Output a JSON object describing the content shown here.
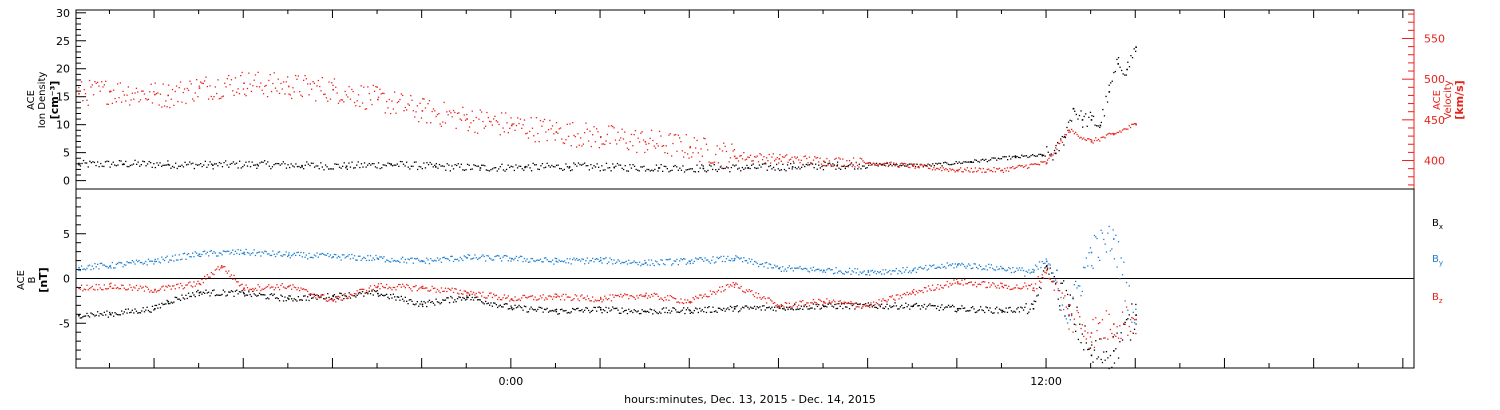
{
  "chart_data": [
    {
      "type": "scatter",
      "panel": "ion-density-velocity",
      "xlabel": "hours:minutes, Dec. 13, 2015 - Dec. 14, 2015",
      "x_unit": "hours from 2015-12-13 00:00",
      "x_range": [
        -9.75,
        20.25
      ],
      "x_ticks": [
        {
          "x": 0,
          "label": "0:00"
        },
        {
          "x": 12,
          "label": "12:00"
        }
      ],
      "left_axis": {
        "label_line1": "ACE",
        "label_line2": "Ion Density",
        "label_units": "[cm⁻³]",
        "range": [
          -1.5,
          30.5
        ],
        "ticks": [
          {
            "v": 0,
            "label": "0"
          },
          {
            "v": 5,
            "label": "5"
          },
          {
            "v": 10,
            "label": "10"
          },
          {
            "v": 15,
            "label": "15"
          },
          {
            "v": 20,
            "label": "20"
          },
          {
            "v": 25,
            "label": "25"
          },
          {
            "v": 30,
            "label": "30"
          }
        ]
      },
      "right_axis": {
        "label_line1": "ACE",
        "label_line2": "Velocity",
        "label_units": "[km/s]",
        "range": [
          365,
          585
        ],
        "ticks": [
          {
            "v": 400,
            "label": "400"
          },
          {
            "v": 450,
            "label": "450"
          },
          {
            "v": 500,
            "label": "500"
          },
          {
            "v": 550,
            "label": "550"
          }
        ]
      },
      "series": [
        {
          "axis": "left",
          "color": "#000000",
          "x": [
            -9.7,
            -8.7,
            -7.7,
            -6.7,
            -5.7,
            -4.7,
            -3.7,
            -2.7,
            -1.7,
            -0.7,
            0.3,
            1.3,
            2.3,
            3.3,
            4.3,
            5.3,
            6.3,
            7.3,
            8.3,
            9.3,
            10.3,
            11.3,
            11.9,
            12.2,
            12.4,
            12.6,
            12.8,
            13.0,
            13.2,
            13.4,
            13.6,
            13.8,
            14.0
          ],
          "y": [
            3.0,
            3.1,
            3.0,
            2.9,
            3.0,
            2.8,
            2.7,
            3.0,
            2.6,
            2.4,
            2.5,
            2.6,
            2.5,
            2.4,
            2.3,
            2.4,
            2.6,
            2.8,
            3.0,
            2.8,
            3.5,
            4.3,
            4.6,
            5.0,
            8.0,
            13.0,
            11.0,
            11.0,
            10.0,
            16.0,
            21.0,
            20.0,
            24.0
          ]
        },
        {
          "axis": "right",
          "color": "#e8211b",
          "x": [
            -9.7,
            -9.0,
            -8.0,
            -7.7,
            -7.0,
            -6.0,
            -5.0,
            -4.0,
            -3.0,
            -2.0,
            -1.0,
            0.0,
            1.0,
            2.0,
            3.0,
            4.0,
            5.0,
            6.0,
            7.0,
            8.0,
            9.0,
            10.0,
            11.0,
            12.0,
            12.5,
            13.0,
            13.5,
            14.0
          ],
          "y": [
            483,
            486,
            482,
            481,
            490,
            496,
            492,
            488,
            476,
            462,
            452,
            444,
            436,
            430,
            424,
            417,
            406,
            403,
            400,
            398,
            394,
            389,
            389,
            398,
            438,
            424,
            433,
            445
          ]
        }
      ]
    },
    {
      "type": "scatter",
      "panel": "magnetic-field",
      "xlabel": "hours:minutes, Dec. 13, 2015 - Dec. 14, 2015",
      "x_unit": "hours from 2015-12-13 00:00",
      "x_range": [
        -9.75,
        20.25
      ],
      "left_axis": {
        "label_line1": "ACE",
        "label_line2": "B",
        "label_units": "[nT]",
        "range": [
          -10,
          10
        ],
        "ticks": [
          {
            "v": -5,
            "label": "-5"
          },
          {
            "v": 0,
            "label": "0"
          },
          {
            "v": 5,
            "label": "5"
          }
        ]
      },
      "zero_line": true,
      "series": [
        {
          "name": "Bx",
          "legend_main": "B",
          "legend_sub": "x",
          "color": "#000000",
          "x": [
            -9.7,
            -9.0,
            -8.0,
            -7.7,
            -7.0,
            -6.0,
            -5.0,
            -4.0,
            -3.0,
            -2.0,
            -1.0,
            0.0,
            1.0,
            2.0,
            3.0,
            4.0,
            5.0,
            6.0,
            7.0,
            8.0,
            9.0,
            10.0,
            11.0,
            11.7,
            12.0,
            12.5,
            13.0,
            13.5,
            14.0
          ],
          "y": [
            -4.0,
            -3.9,
            -3.3,
            -2.5,
            -1.5,
            -1.6,
            -2.2,
            -1.9,
            -1.6,
            -2.8,
            -2.0,
            -3.2,
            -3.6,
            -3.4,
            -3.6,
            -3.5,
            -3.3,
            -3.2,
            -3.0,
            -3.0,
            -3.0,
            -3.3,
            -3.5,
            -3.3,
            1.5,
            -3.0,
            -8.5,
            -8.0,
            -4.0
          ]
        },
        {
          "name": "By",
          "legend_main": "B",
          "legend_sub": "y",
          "color": "#1e7fd0",
          "x": [
            -9.7,
            -9.0,
            -8.0,
            -7.0,
            -6.0,
            -5.0,
            -4.0,
            -3.0,
            -2.0,
            -1.0,
            0.0,
            1.0,
            2.0,
            3.0,
            4.0,
            5.0,
            6.0,
            7.0,
            8.0,
            9.0,
            10.0,
            11.0,
            11.7,
            12.0,
            12.5,
            13.0,
            13.5,
            14.0
          ],
          "y": [
            1.3,
            1.5,
            2.0,
            2.8,
            3.0,
            2.7,
            2.5,
            2.3,
            2.0,
            2.4,
            2.3,
            2.0,
            2.1,
            1.8,
            2.0,
            2.3,
            1.2,
            1.0,
            0.8,
            1.0,
            1.6,
            1.2,
            0.8,
            2.0,
            -4.0,
            3.0,
            4.5,
            -5.0
          ]
        },
        {
          "name": "Bz",
          "legend_main": "B",
          "legend_sub": "z",
          "color": "#e8211b",
          "x": [
            -9.7,
            -9.0,
            -8.0,
            -7.0,
            -6.5,
            -6.0,
            -5.0,
            -4.0,
            -3.0,
            -2.0,
            -1.0,
            0.0,
            1.0,
            2.0,
            3.0,
            4.0,
            5.0,
            6.0,
            7.0,
            8.0,
            9.0,
            10.0,
            11.0,
            11.7,
            12.0,
            12.5,
            13.0,
            13.5,
            14.0
          ],
          "y": [
            -1.0,
            -0.8,
            -1.2,
            -0.5,
            1.5,
            -1.0,
            -0.8,
            -2.4,
            -0.8,
            -1.0,
            -1.5,
            -2.2,
            -2.0,
            -2.2,
            -1.8,
            -2.5,
            -0.6,
            -3.0,
            -2.5,
            -3.0,
            -1.5,
            -0.3,
            -0.8,
            -1.0,
            1.0,
            -4.0,
            -6.0,
            -5.0,
            -4.5
          ]
        }
      ]
    }
  ]
}
